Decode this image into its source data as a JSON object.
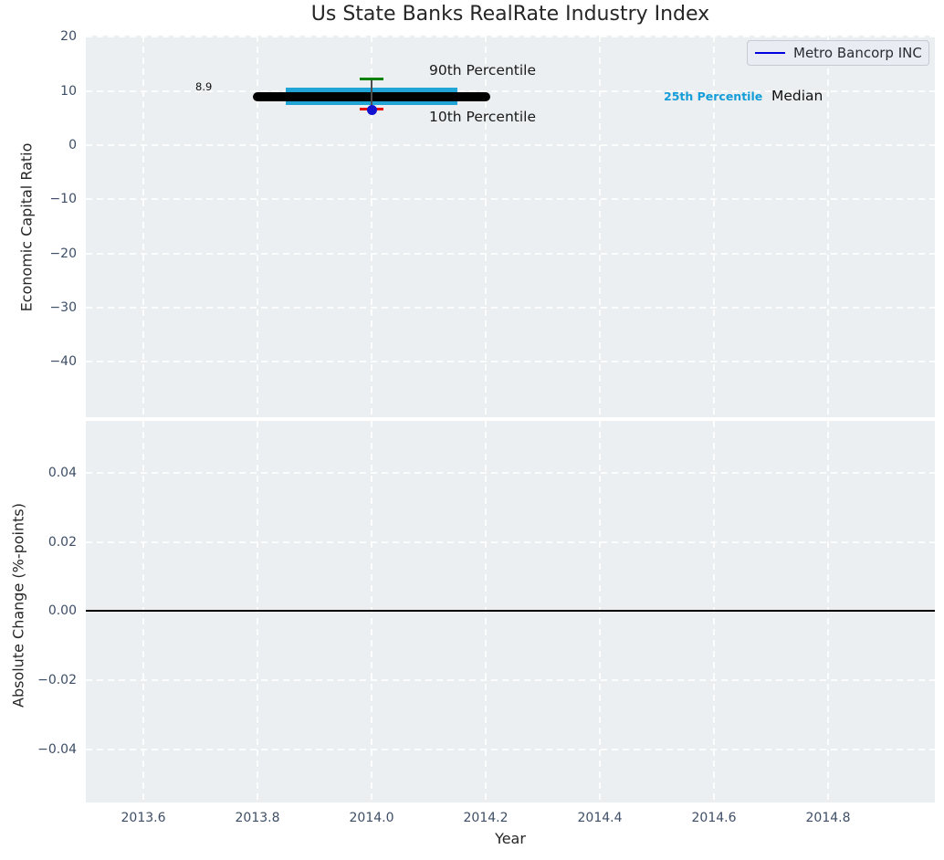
{
  "title": "Us State Banks RealRate Industry Index",
  "legend": {
    "label": "Metro Bancorp INC"
  },
  "annotations": {
    "median_value": "8.9",
    "p90": "90th Percentile",
    "p10": "10th Percentile",
    "p25": "25th Percentile",
    "median": "Median"
  },
  "axes": {
    "top": {
      "ylabel": "Economic Capital Ratio",
      "yticks": [
        "20",
        "10",
        "0",
        "−10",
        "−20",
        "−30",
        "−40"
      ]
    },
    "bottom": {
      "ylabel": "Absolute Change (%-points)",
      "yticks": [
        "0.04",
        "0.02",
        "0.00",
        "−0.02",
        "−0.04"
      ]
    },
    "x": {
      "label": "Year",
      "ticks": [
        "2013.6",
        "2013.8",
        "2014.0",
        "2014.2",
        "2014.4",
        "2014.6",
        "2014.8"
      ]
    }
  },
  "colors": {
    "company_line": "#0000dd",
    "company_marker": "#1212d0",
    "median": "#000000",
    "iqr_band": "#21a5d6",
    "p90_cap": "#008000",
    "p10_cap": "#e51111",
    "stem": "#4d4d4d",
    "p25_text": "#149dd8",
    "zero_line": "#000000"
  },
  "chart_data": {
    "type": "errorbar",
    "title": "Us State Banks RealRate Industry Index",
    "xlabel": "Year",
    "xlim": [
      2013.5,
      2014.99
    ],
    "xticks": [
      2013.6,
      2013.8,
      2014.0,
      2014.2,
      2014.4,
      2014.6,
      2014.8
    ],
    "grid": "white dashed on light-gray background",
    "legend_position": "upper right",
    "panels": [
      {
        "ylabel": "Economic Capital Ratio",
        "ylim": [
          -50.2,
          20.2
        ],
        "yticks": [
          20,
          10,
          0,
          -10,
          -20,
          -30,
          -40
        ],
        "series": {
          "company": "Metro Bancorp INC",
          "year": 2014.0,
          "median": 8.9,
          "median_span_years": [
            2013.8,
            2014.2
          ],
          "p75": 10.6,
          "p25": 7.4,
          "iqr_span_years": [
            2013.85,
            2014.15
          ],
          "p90": 12.2,
          "p10": 6.6,
          "company_value": 6.5
        }
      },
      {
        "ylabel": "Absolute Change (%-points)",
        "ylim": [
          -0.055,
          0.055
        ],
        "yticks": [
          0.04,
          0.02,
          0.0,
          -0.02,
          -0.04
        ],
        "zero_line": 0.0,
        "series": {}
      }
    ]
  }
}
